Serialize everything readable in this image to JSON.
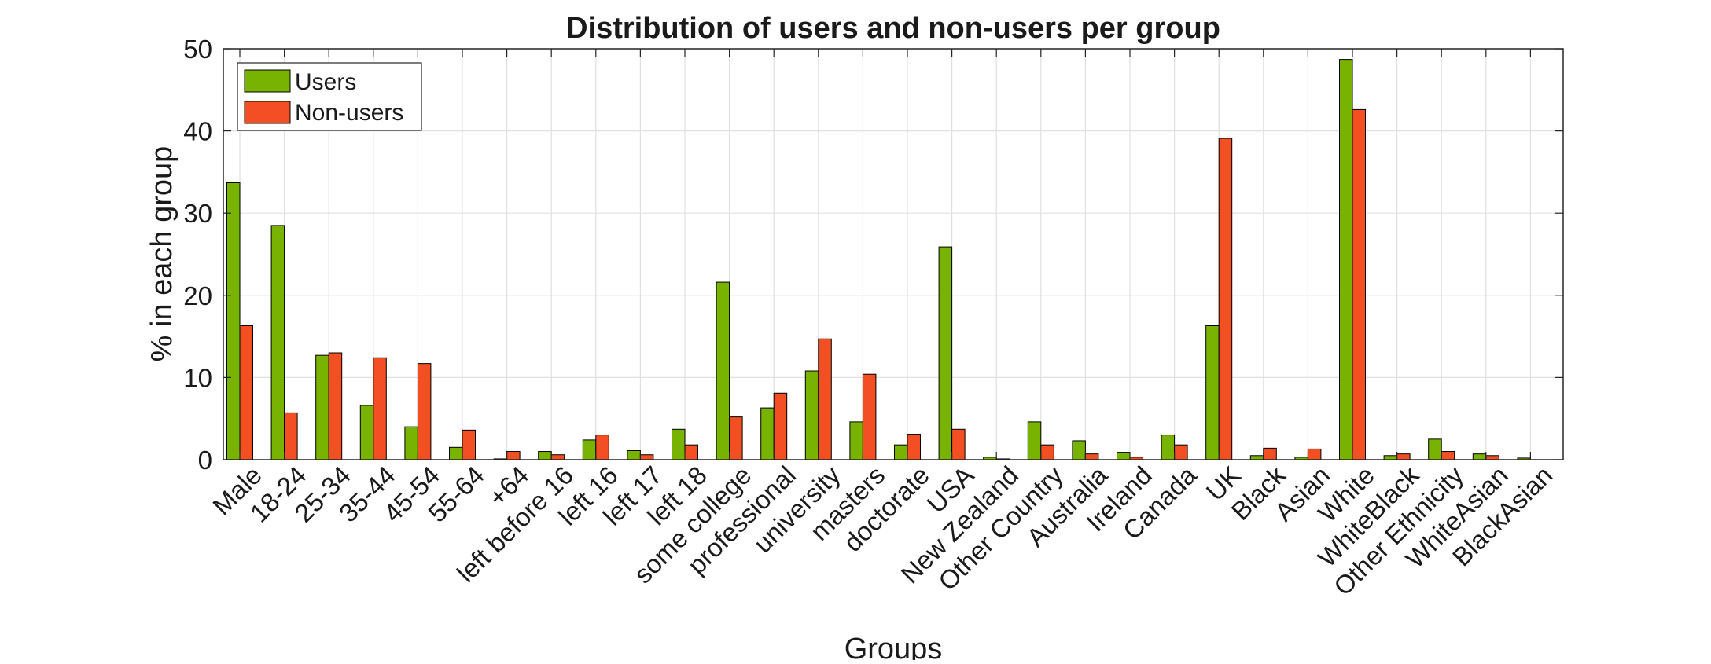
{
  "chart_data": {
    "type": "bar",
    "title": "Distribution of users and non-users per group",
    "xlabel": "Groups",
    "ylabel": "% in each group",
    "ylim": [
      0,
      50
    ],
    "yticks": [
      0,
      10,
      20,
      30,
      40,
      50
    ],
    "grid": true,
    "legend_position": "top-left",
    "categories": [
      "Male",
      "18-24",
      "25-34",
      "35-44",
      "45-54",
      "55-64",
      "+64",
      "left before 16",
      "left 16",
      "left 17",
      "left 18",
      "some college",
      "professional",
      "university",
      "masters",
      "doctorate",
      "USA",
      "New Zealand",
      "Other Country",
      "Australia",
      "Ireland",
      "Canada",
      "UK",
      "Black",
      "Asian",
      "White",
      "WhiteBlack",
      "Other Ethnicity",
      "WhiteAsian",
      "BlackAsian"
    ],
    "series": [
      {
        "name": "Users",
        "color": "#77b300",
        "values": [
          33.7,
          28.5,
          12.7,
          6.6,
          4.0,
          1.5,
          0.1,
          1.0,
          2.4,
          1.1,
          3.7,
          21.6,
          6.3,
          10.8,
          4.6,
          1.8,
          25.9,
          0.3,
          4.6,
          2.3,
          0.9,
          3.0,
          16.3,
          0.5,
          0.3,
          48.7,
          0.5,
          2.5,
          0.7,
          0.2
        ]
      },
      {
        "name": "Non-users",
        "color": "#f25022",
        "values": [
          16.3,
          5.7,
          13.0,
          12.4,
          11.7,
          3.6,
          1.0,
          0.6,
          3.0,
          0.6,
          1.8,
          5.2,
          8.1,
          14.7,
          10.4,
          3.1,
          3.7,
          0.1,
          1.8,
          0.7,
          0.3,
          1.8,
          39.1,
          1.4,
          1.3,
          42.6,
          0.7,
          1.0,
          0.5,
          0.0
        ]
      }
    ]
  }
}
